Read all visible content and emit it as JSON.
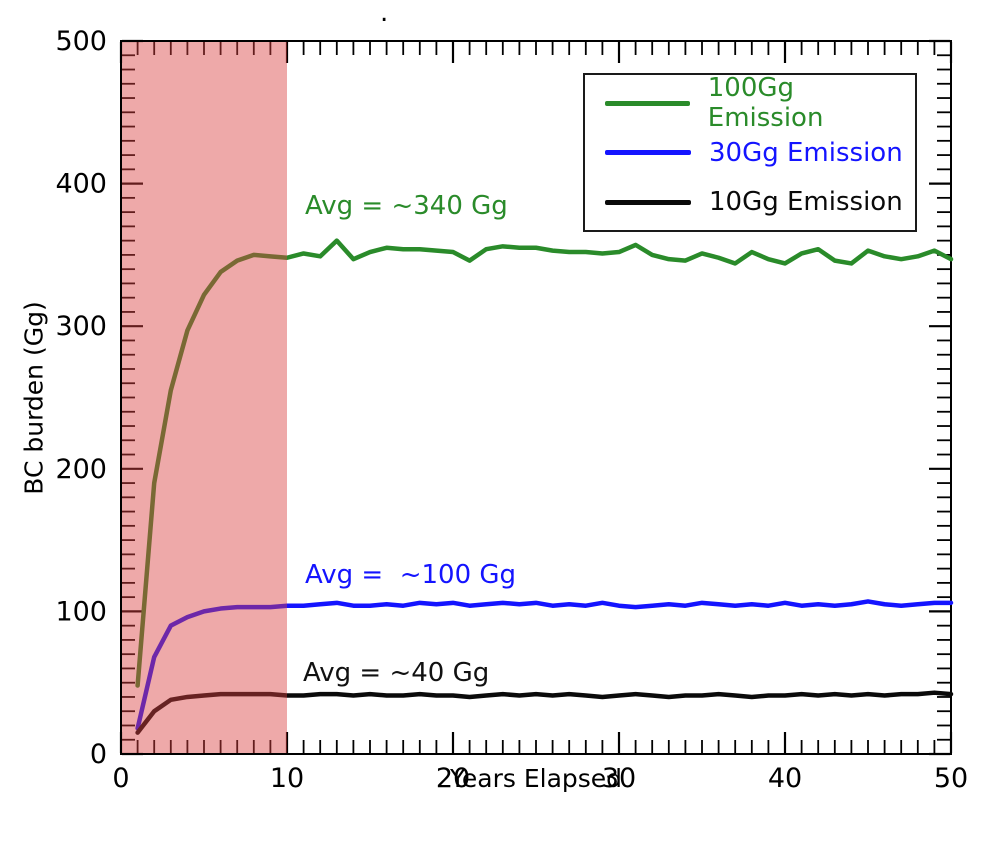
{
  "title": ".",
  "annotations": [
    {
      "text": "Avg = ~340 Gg",
      "color": "#2a8b2a",
      "x_year": 11.1,
      "y_gg": 382
    },
    {
      "text": "Avg =  ~100 Gg",
      "color": "#1414ff",
      "x_year": 11.1,
      "y_gg": 124
    },
    {
      "text": "Avg = ~40 Gg",
      "color": "#111111",
      "x_year": 11.0,
      "y_gg": 56
    }
  ],
  "chart_data": {
    "type": "line",
    "title": ".",
    "xlabel": "Years Elapsed",
    "ylabel": "BC burden (Gg)",
    "xlim": [
      0,
      50
    ],
    "ylim": [
      0,
      500
    ],
    "xticks": [
      0,
      10,
      20,
      30,
      40,
      50
    ],
    "yticks": [
      0,
      100,
      200,
      300,
      400,
      500
    ],
    "x_minor_step": 1,
    "y_minor_step": 10,
    "grid": "off",
    "legend_position": "upper right",
    "shaded_region": {
      "x_start": 0,
      "x_end": 10,
      "color": "rgba(217,64,64,0.45)"
    },
    "x": [
      1,
      2,
      3,
      4,
      5,
      6,
      7,
      8,
      9,
      10,
      11,
      12,
      13,
      14,
      15,
      16,
      17,
      18,
      19,
      20,
      21,
      22,
      23,
      24,
      25,
      26,
      27,
      28,
      29,
      30,
      31,
      32,
      33,
      34,
      35,
      36,
      37,
      38,
      39,
      40,
      41,
      42,
      43,
      44,
      45,
      46,
      47,
      48,
      49,
      50
    ],
    "series": [
      {
        "name": "100Gg Emission",
        "color": "#2a8b2a",
        "avg_label": "~340 Gg",
        "values": [
          48,
          190,
          255,
          297,
          322,
          338,
          346,
          350,
          349,
          348,
          351,
          349,
          360,
          347,
          352,
          355,
          354,
          354,
          353,
          352,
          346,
          354,
          356,
          355,
          355,
          353,
          352,
          352,
          351,
          352,
          357,
          350,
          347,
          346,
          351,
          348,
          344,
          352,
          347,
          344,
          351,
          354,
          346,
          344,
          353,
          349,
          347,
          349,
          353,
          347
        ]
      },
      {
        "name": "30Gg Emission",
        "color": "#1414ff",
        "avg_label": "~100 Gg",
        "values": [
          18,
          68,
          90,
          96,
          100,
          102,
          103,
          103,
          103,
          104,
          104,
          105,
          106,
          104,
          104,
          105,
          104,
          106,
          105,
          106,
          104,
          105,
          106,
          105,
          106,
          104,
          105,
          104,
          106,
          104,
          103,
          104,
          105,
          104,
          106,
          105,
          104,
          105,
          104,
          106,
          104,
          105,
          104,
          105,
          107,
          105,
          104,
          105,
          106,
          106
        ]
      },
      {
        "name": "10Gg Emission",
        "color": "#0a0a0a",
        "avg_label": "~40 Gg",
        "values": [
          15,
          30,
          38,
          40,
          41,
          42,
          42,
          42,
          42,
          41,
          41,
          42,
          42,
          41,
          42,
          41,
          41,
          42,
          41,
          41,
          40,
          41,
          42,
          41,
          42,
          41,
          42,
          41,
          40,
          41,
          42,
          41,
          40,
          41,
          41,
          42,
          41,
          40,
          41,
          41,
          42,
          41,
          42,
          41,
          42,
          41,
          42,
          42,
          43,
          42
        ]
      }
    ]
  }
}
